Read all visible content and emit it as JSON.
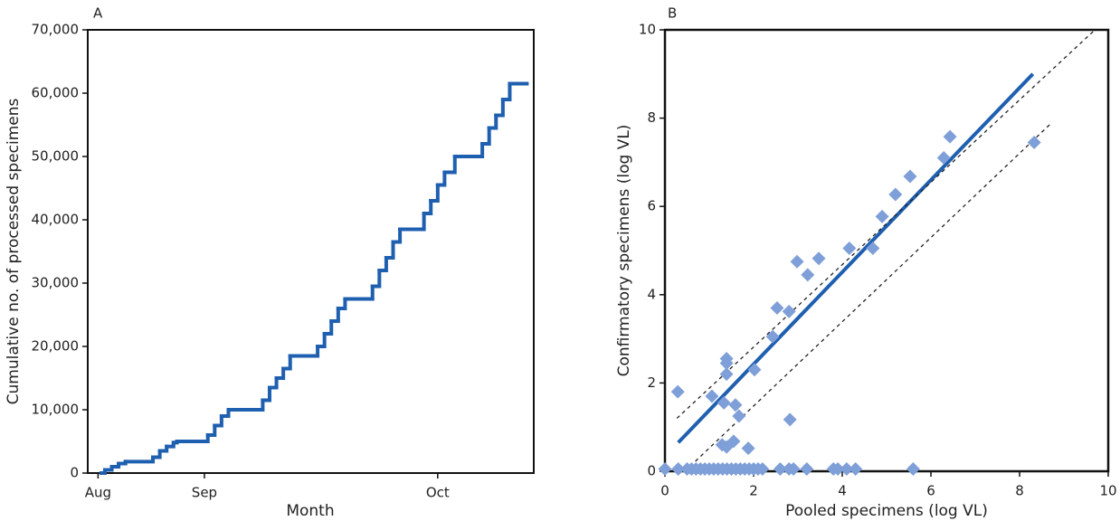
{
  "chart_data": [
    {
      "type": "step",
      "title": "A",
      "xlabel": "Month",
      "ylabel": "Cumulative no. of processed specimens",
      "x": [
        1,
        2,
        4,
        6,
        8,
        16,
        18,
        20,
        22,
        23,
        32,
        34,
        36,
        38,
        48,
        50,
        52,
        54,
        56,
        64,
        66,
        68,
        70,
        72,
        80,
        82,
        84,
        86,
        88,
        95,
        97,
        99,
        101,
        104,
        112,
        114,
        116,
        118,
        120,
        125
      ],
      "values": [
        0,
        500,
        1000,
        1500,
        1800,
        2500,
        3500,
        4200,
        4800,
        5000,
        6000,
        7500,
        9000,
        10000,
        11500,
        13500,
        15000,
        16500,
        18500,
        20000,
        22000,
        24000,
        26000,
        27500,
        29500,
        32000,
        34000,
        36500,
        38500,
        41000,
        43000,
        45500,
        47500,
        50000,
        52000,
        54500,
        56500,
        59000,
        61500,
        61500
      ],
      "color": "#1f5fb0",
      "xlim": [
        -3,
        127
      ],
      "xticks": [
        {
          "value": 0,
          "label": "Aug"
        },
        {
          "value": 31,
          "label": "Sep"
        },
        {
          "value": 99,
          "label": "Oct"
        }
      ],
      "ylim": [
        0,
        70000
      ],
      "yticks": [
        0,
        {
          "value": 10000,
          "label": "10,000"
        },
        {
          "value": 20000,
          "label": "20,000"
        },
        {
          "value": 30000,
          "label": "30,000"
        },
        {
          "value": 40000,
          "label": "40,000"
        },
        {
          "value": 50000,
          "label": "50,000"
        },
        {
          "value": 60000,
          "label": "60,000"
        },
        {
          "value": 70000,
          "label": "70,000"
        }
      ]
    },
    {
      "type": "scatter",
      "title": "B",
      "xlabel": "Pooled specimens (log VL)",
      "ylabel": "Confirmatory specimens (log VL)",
      "x": [
        0.29,
        0,
        0.3,
        0.5,
        0.6,
        0.7,
        0.8,
        0.9,
        1.0,
        1.1,
        1.2,
        1.3,
        1.4,
        1.5,
        1.6,
        1.7,
        1.8,
        1.9,
        2.0,
        2.1,
        2.2,
        2.6,
        2.8,
        2.9,
        3.2,
        3.8,
        3.9,
        4.1,
        4.3,
        5.6,
        1.39,
        1.39,
        1.39,
        1.06,
        1.33,
        1.59,
        1.67,
        1.29,
        1.55,
        1.39,
        1.88,
        2.02,
        2.43,
        2.53,
        2.8,
        2.82,
        2.98,
        3.22,
        3.47,
        4.16,
        4.69,
        4.9,
        5.2,
        5.53,
        6.29,
        6.43,
        8.33
      ],
      "y": [
        1.8,
        0.05,
        0.05,
        0.05,
        0.05,
        0.05,
        0.05,
        0.05,
        0.05,
        0.05,
        0.05,
        0.05,
        0.05,
        0.05,
        0.05,
        0.05,
        0.05,
        0.05,
        0.05,
        0.05,
        0.05,
        0.05,
        0.05,
        0.05,
        0.05,
        0.05,
        0.05,
        0.05,
        0.05,
        0.05,
        2.55,
        2.45,
        2.2,
        1.7,
        1.55,
        1.5,
        1.25,
        0.6,
        0.68,
        0.55,
        0.52,
        2.3,
        3.05,
        3.7,
        3.62,
        1.17,
        4.75,
        4.45,
        4.82,
        5.05,
        5.05,
        5.77,
        6.27,
        6.68,
        7.1,
        7.58,
        7.45
      ],
      "color": "#7f9fd8",
      "lines": [
        {
          "style": "solid",
          "color": "#1f5fb0",
          "x": [
            0.3,
            8.3
          ],
          "y": [
            0.65,
            9.0
          ]
        },
        {
          "style": "dashed",
          "color": "#222222",
          "x": [
            0.27,
            9.7
          ],
          "y": [
            1.2,
            10
          ]
        },
        {
          "style": "dashed",
          "color": "#222222",
          "x": [
            0.45,
            8.73
          ],
          "y": [
            0,
            7.9
          ]
        }
      ],
      "xlim": [
        0,
        10
      ],
      "xticks": [
        0,
        2,
        4,
        6,
        8,
        10
      ],
      "ylim": [
        0,
        10
      ],
      "yticks": [
        0,
        2,
        4,
        6,
        8,
        10
      ]
    }
  ]
}
